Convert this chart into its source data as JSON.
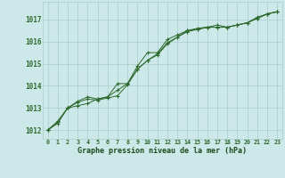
{
  "title": "Graphe pression niveau de la mer (hPa)",
  "bg_color": "#cce8e8",
  "plot_bg_color": "#cce8e8",
  "grid_color": "#aacccc",
  "line_color": "#2d6a2d",
  "marker_color": "#2d6a2d",
  "tick_color": "#2d6a2d",
  "title_color": "#1a4a1a",
  "ylim": [
    1011.6,
    1017.8
  ],
  "yticks": [
    1012,
    1013,
    1014,
    1015,
    1016,
    1017
  ],
  "xticks": [
    0,
    1,
    2,
    3,
    4,
    5,
    6,
    7,
    8,
    9,
    10,
    11,
    12,
    13,
    14,
    15,
    16,
    17,
    18,
    19,
    20,
    21,
    22,
    23
  ],
  "series": [
    [
      1012.0,
      1012.4,
      1013.0,
      1013.1,
      1013.2,
      1013.4,
      1013.5,
      1014.1,
      1014.1,
      1014.9,
      1015.5,
      1015.5,
      1016.1,
      1016.3,
      1016.5,
      1016.6,
      1016.65,
      1016.75,
      1016.65,
      1016.75,
      1016.85,
      1017.1,
      1017.25,
      1017.35
    ],
    [
      1012.0,
      1012.35,
      1013.0,
      1013.25,
      1013.4,
      1013.35,
      1013.45,
      1013.55,
      1014.05,
      1014.75,
      1015.15,
      1015.45,
      1015.95,
      1016.2,
      1016.5,
      1016.55,
      1016.65,
      1016.65,
      1016.65,
      1016.75,
      1016.85,
      1017.05,
      1017.25,
      1017.35
    ],
    [
      1012.0,
      1012.3,
      1013.0,
      1013.3,
      1013.5,
      1013.4,
      1013.5,
      1013.8,
      1014.1,
      1014.75,
      1015.15,
      1015.4,
      1015.9,
      1016.2,
      1016.45,
      1016.55,
      1016.65,
      1016.65,
      1016.65,
      1016.75,
      1016.85,
      1017.05,
      1017.25,
      1017.35
    ]
  ]
}
